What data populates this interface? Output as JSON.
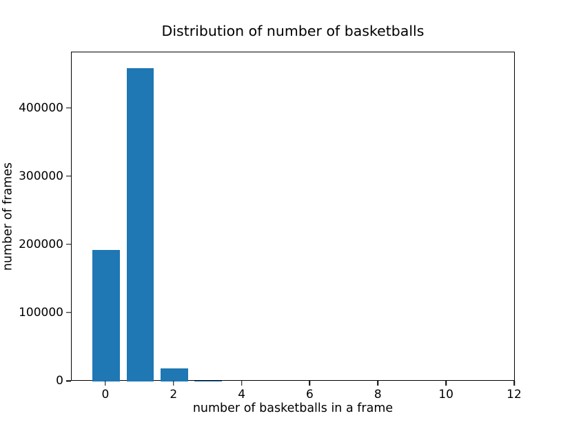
{
  "chart_data": {
    "type": "bar",
    "title": "Distribution of number of basketballs",
    "xlabel": "number of basketballs in a frame",
    "ylabel": "number of frames",
    "x": [
      0,
      1,
      2,
      3
    ],
    "values": [
      193000,
      460000,
      19000,
      1500
    ],
    "bar_width": 0.8,
    "bar_color": "#1f77b4",
    "xticks": [
      0,
      2,
      4,
      6,
      8,
      10,
      12
    ],
    "yticks": [
      0,
      100000,
      200000,
      300000,
      400000
    ],
    "xlim": [
      -1.01,
      12.02
    ],
    "ylim": [
      0,
      482800
    ],
    "grid": false,
    "legend": false,
    "frame_color": "#000000",
    "background_color": "#ffffff"
  }
}
